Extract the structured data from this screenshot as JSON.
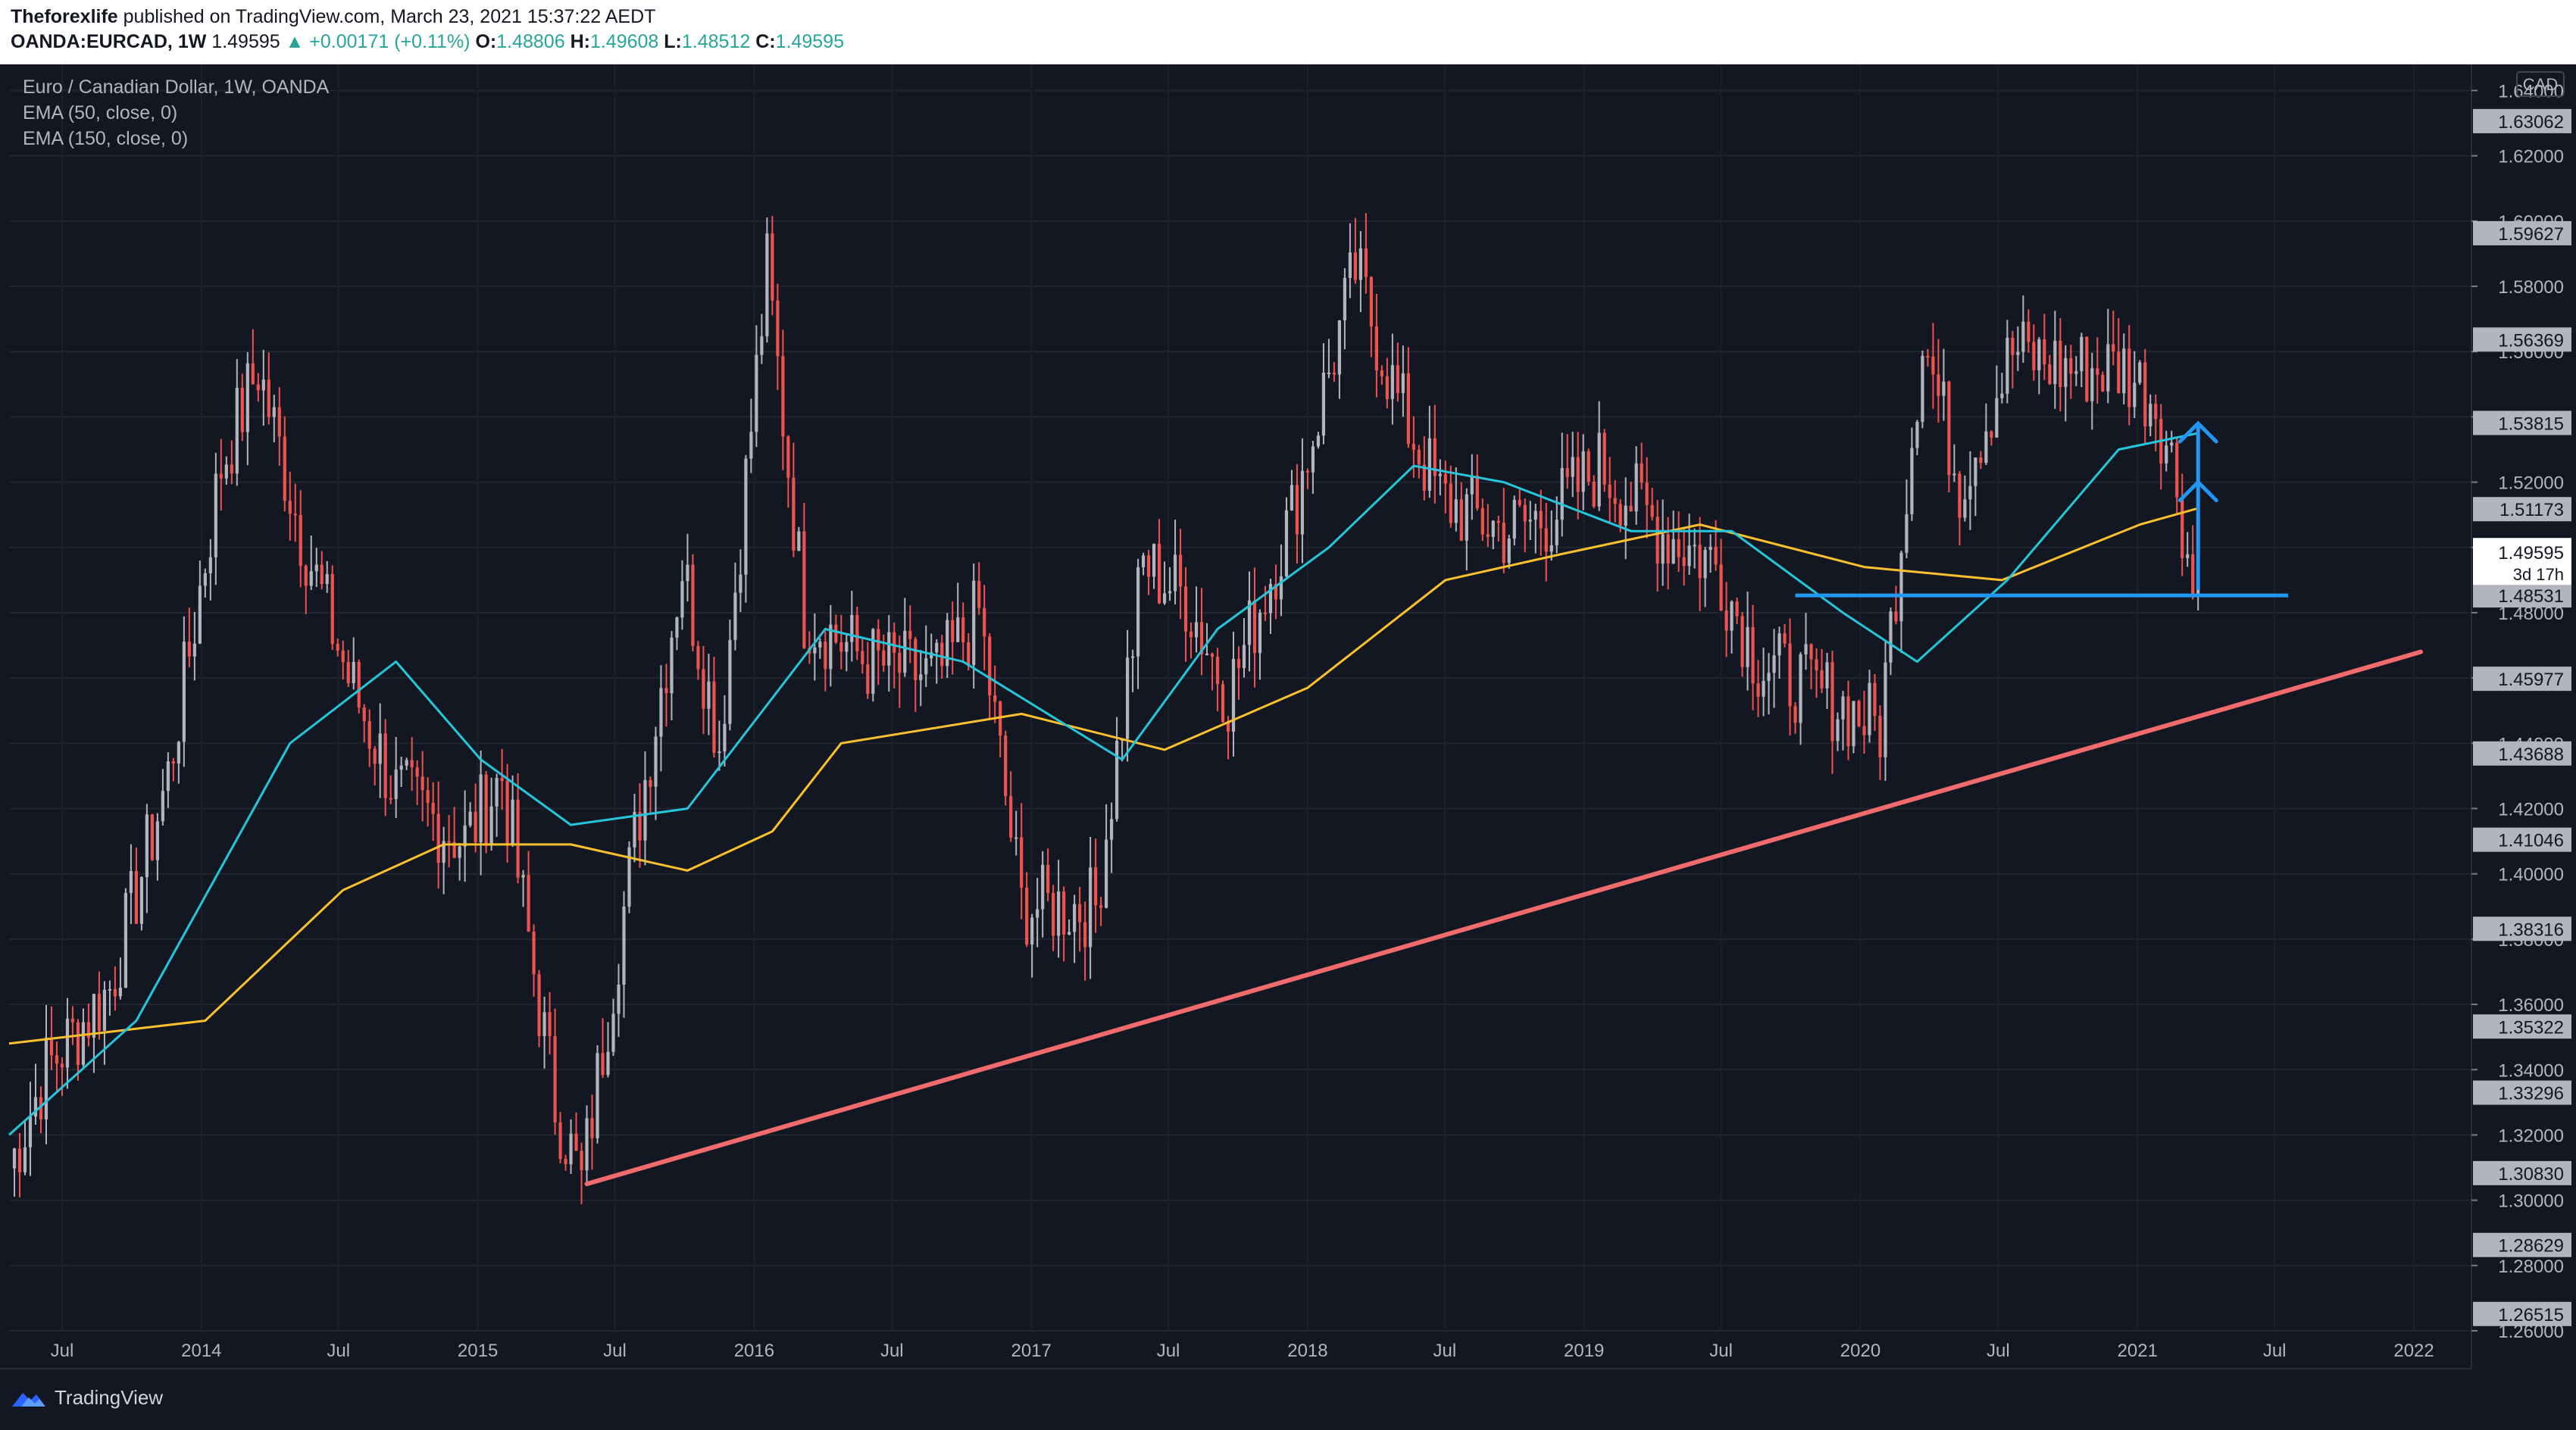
{
  "header": {
    "publisher": "Theforexlife",
    "published_text": "published on TradingView.com, March 23, 2021 15:37:22 AEDT",
    "symbol": "OANDA:EURCAD, 1W",
    "last": "1.49595",
    "change": "▲ +0.00171 (+0.11%)",
    "o_label": "O:",
    "o": "1.48806",
    "h_label": "H:",
    "h": "1.49608",
    "l_label": "L:",
    "l": "1.48512",
    "c_label": "C:",
    "c": "1.49595"
  },
  "legend": {
    "title": "Euro / Canadian Dollar, 1W, OANDA",
    "ema50": "EMA (50, close, 0)",
    "ema150": "EMA (150, close, 0)"
  },
  "footer": {
    "brand": "TradingView"
  },
  "colors": {
    "up": "#b2b5be",
    "down": "#ef5350",
    "ema50": "#26c6da",
    "ema150": "#fbc02d",
    "trendline": "#f06b6b",
    "support": "#2196f3",
    "label_bg": "#b2b5be"
  },
  "chart_data": {
    "type": "candlestick",
    "currency": "CAD",
    "ylim": [
      1.26,
      1.648
    ],
    "y_ticks": [
      "1.64000",
      "1.62000",
      "1.60000",
      "1.58000",
      "1.56000",
      "1.54000",
      "1.52000",
      "1.50000",
      "1.48000",
      "1.46000",
      "1.44000",
      "1.42000",
      "1.40000",
      "1.38000",
      "1.36000",
      "1.34000",
      "1.32000",
      "1.30000",
      "1.28000",
      "1.26000"
    ],
    "x_ticks": [
      {
        "label": "Jul",
        "date": "2013-07-01"
      },
      {
        "label": "2014",
        "date": "2014-01-01"
      },
      {
        "label": "Jul",
        "date": "2014-07-01"
      },
      {
        "label": "2015",
        "date": "2015-01-01"
      },
      {
        "label": "Jul",
        "date": "2015-07-01"
      },
      {
        "label": "2016",
        "date": "2016-01-01"
      },
      {
        "label": "Jul",
        "date": "2016-07-01"
      },
      {
        "label": "2017",
        "date": "2017-01-01"
      },
      {
        "label": "Jul",
        "date": "2017-07-01"
      },
      {
        "label": "2018",
        "date": "2018-01-01"
      },
      {
        "label": "Jul",
        "date": "2018-07-01"
      },
      {
        "label": "2019",
        "date": "2019-01-01"
      },
      {
        "label": "Jul",
        "date": "2019-07-01"
      },
      {
        "label": "2020",
        "date": "2020-01-01"
      },
      {
        "label": "Jul",
        "date": "2020-07-01"
      },
      {
        "label": "2021",
        "date": "2021-01-01"
      },
      {
        "label": "Jul",
        "date": "2021-07-01"
      },
      {
        "label": "2022",
        "date": "2022-01-01"
      }
    ],
    "x_range": [
      "2013-04-22",
      "2022-03-14"
    ],
    "price_path": [
      {
        "date": "2013-04-22",
        "close": 1.31
      },
      {
        "date": "2013-06-10",
        "close": 1.34
      },
      {
        "date": "2013-09-02",
        "close": 1.365
      },
      {
        "date": "2013-11-18",
        "close": 1.43
      },
      {
        "date": "2014-01-27",
        "close": 1.525
      },
      {
        "date": "2014-03-17",
        "close": 1.555
      },
      {
        "date": "2014-05-12",
        "close": 1.505
      },
      {
        "date": "2014-07-14",
        "close": 1.46
      },
      {
        "date": "2014-09-15",
        "close": 1.425
      },
      {
        "date": "2014-12-15",
        "close": 1.41
      },
      {
        "date": "2015-02-02",
        "close": 1.43
      },
      {
        "date": "2015-04-13",
        "close": 1.33
      },
      {
        "date": "2015-05-18",
        "close": 1.305
      },
      {
        "date": "2015-07-27",
        "close": 1.41
      },
      {
        "date": "2015-09-28",
        "close": 1.495
      },
      {
        "date": "2015-11-16",
        "close": 1.44
      },
      {
        "date": "2016-01-18",
        "close": 1.585
      },
      {
        "date": "2016-03-07",
        "close": 1.48
      },
      {
        "date": "2016-05-30",
        "close": 1.465
      },
      {
        "date": "2016-08-29",
        "close": 1.46
      },
      {
        "date": "2016-10-24",
        "close": 1.48
      },
      {
        "date": "2016-12-19",
        "close": 1.39
      },
      {
        "date": "2017-03-27",
        "close": 1.39
      },
      {
        "date": "2017-05-29",
        "close": 1.495
      },
      {
        "date": "2017-07-24",
        "close": 1.485
      },
      {
        "date": "2017-09-18",
        "close": 1.455
      },
      {
        "date": "2017-12-11",
        "close": 1.51
      },
      {
        "date": "2018-03-05",
        "close": 1.585
      },
      {
        "date": "2018-04-30",
        "close": 1.545
      },
      {
        "date": "2018-06-25",
        "close": 1.515
      },
      {
        "date": "2018-09-17",
        "close": 1.505
      },
      {
        "date": "2018-11-19",
        "close": 1.51
      },
      {
        "date": "2019-01-21",
        "close": 1.525
      },
      {
        "date": "2019-04-15",
        "close": 1.505
      },
      {
        "date": "2019-06-24",
        "close": 1.495
      },
      {
        "date": "2019-08-19",
        "close": 1.465
      },
      {
        "date": "2019-11-11",
        "close": 1.455
      },
      {
        "date": "2020-01-27",
        "close": 1.445
      },
      {
        "date": "2020-03-02",
        "close": 1.52
      },
      {
        "date": "2020-03-23",
        "close": 1.565
      },
      {
        "date": "2020-05-11",
        "close": 1.52
      },
      {
        "date": "2020-07-20",
        "close": 1.56
      },
      {
        "date": "2020-09-28",
        "close": 1.555
      },
      {
        "date": "2020-12-14",
        "close": 1.555
      },
      {
        "date": "2021-01-25",
        "close": 1.545
      },
      {
        "date": "2021-02-22",
        "close": 1.52
      },
      {
        "date": "2021-03-15",
        "close": 1.487
      },
      {
        "date": "2021-03-22",
        "close": 1.49595
      }
    ],
    "ema50": [
      {
        "date": "2013-04-22",
        "value": 1.32
      },
      {
        "date": "2013-10-07",
        "value": 1.355
      },
      {
        "date": "2014-04-28",
        "value": 1.44
      },
      {
        "date": "2014-09-15",
        "value": 1.465
      },
      {
        "date": "2015-01-05",
        "value": 1.435
      },
      {
        "date": "2015-05-04",
        "value": 1.415
      },
      {
        "date": "2015-10-05",
        "value": 1.42
      },
      {
        "date": "2016-04-04",
        "value": 1.475
      },
      {
        "date": "2016-10-03",
        "value": 1.465
      },
      {
        "date": "2017-05-01",
        "value": 1.435
      },
      {
        "date": "2017-09-04",
        "value": 1.475
      },
      {
        "date": "2018-01-29",
        "value": 1.5
      },
      {
        "date": "2018-05-21",
        "value": 1.525
      },
      {
        "date": "2018-09-17",
        "value": 1.52
      },
      {
        "date": "2019-03-04",
        "value": 1.505
      },
      {
        "date": "2019-07-15",
        "value": 1.505
      },
      {
        "date": "2019-12-09",
        "value": 1.48
      },
      {
        "date": "2020-03-16",
        "value": 1.465
      },
      {
        "date": "2020-07-13",
        "value": 1.49
      },
      {
        "date": "2020-12-07",
        "value": 1.53
      },
      {
        "date": "2021-03-22",
        "value": 1.535
      }
    ],
    "ema150": [
      {
        "date": "2013-04-22",
        "value": 1.348
      },
      {
        "date": "2014-01-06",
        "value": 1.355
      },
      {
        "date": "2014-07-07",
        "value": 1.395
      },
      {
        "date": "2014-11-17",
        "value": 1.409
      },
      {
        "date": "2015-05-04",
        "value": 1.409
      },
      {
        "date": "2015-10-05",
        "value": 1.401
      },
      {
        "date": "2016-01-25",
        "value": 1.413
      },
      {
        "date": "2016-04-25",
        "value": 1.44
      },
      {
        "date": "2016-12-19",
        "value": 1.449
      },
      {
        "date": "2017-06-26",
        "value": 1.438
      },
      {
        "date": "2018-01-01",
        "value": 1.457
      },
      {
        "date": "2018-07-02",
        "value": 1.49
      },
      {
        "date": "2018-12-03",
        "value": 1.498
      },
      {
        "date": "2019-06-03",
        "value": 1.507
      },
      {
        "date": "2020-01-06",
        "value": 1.494
      },
      {
        "date": "2020-07-06",
        "value": 1.49
      },
      {
        "date": "2021-01-04",
        "value": 1.507
      },
      {
        "date": "2021-03-22",
        "value": 1.512
      }
    ],
    "price_labels": [
      {
        "value": 1.63062,
        "text": "1.63062"
      },
      {
        "value": 1.59627,
        "text": "1.59627"
      },
      {
        "value": 1.56369,
        "text": "1.56369"
      },
      {
        "value": 1.53815,
        "text": "1.53815"
      },
      {
        "value": 1.51173,
        "text": "1.51173"
      },
      {
        "value": 1.48531,
        "text": "1.48531"
      },
      {
        "value": 1.45977,
        "text": "1.45977"
      },
      {
        "value": 1.43688,
        "text": "1.43688"
      },
      {
        "value": 1.41046,
        "text": "1.41046"
      },
      {
        "value": 1.38316,
        "text": "1.38316"
      },
      {
        "value": 1.35322,
        "text": "1.35322"
      },
      {
        "value": 1.33296,
        "text": "1.33296"
      },
      {
        "value": 1.3083,
        "text": "1.30830"
      },
      {
        "value": 1.28629,
        "text": "1.28629"
      },
      {
        "value": 1.26515,
        "text": "1.26515"
      }
    ],
    "current_price": {
      "value": 1.49595,
      "text": "1.49595",
      "countdown": "3d 17h"
    },
    "drawings": {
      "trendline": {
        "from": {
          "date": "2015-05-25",
          "value": 1.305
        },
        "to": {
          "date": "2022-01-10",
          "value": 1.468
        }
      },
      "support": {
        "from": {
          "date": "2019-10-07",
          "value": 1.48531
        },
        "to": {
          "date": "2021-07-19",
          "value": 1.48531
        }
      },
      "target_arrow": {
        "date": "2021-03-22",
        "from": 1.487,
        "to": 1.538
      },
      "chevrons": [
        1.538,
        1.52
      ]
    }
  }
}
